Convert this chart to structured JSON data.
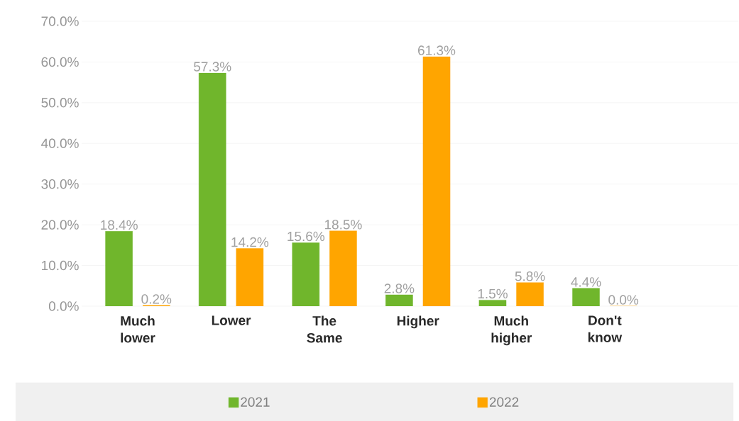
{
  "chart_data": {
    "type": "bar",
    "categories": [
      "Much lower",
      "Lower",
      "The Same",
      "Higher",
      "Much higher",
      "Don't know"
    ],
    "series": [
      {
        "name": "2021",
        "color": "#70b62c",
        "values": [
          18.4,
          57.3,
          15.6,
          2.8,
          1.5,
          4.4
        ],
        "value_labels": [
          "18.4%",
          "57.3%",
          "15.6%",
          "2.8%",
          "1.5%",
          "4.4%"
        ]
      },
      {
        "name": "2022",
        "color": "#ffa500",
        "values": [
          0.2,
          14.2,
          18.5,
          61.3,
          5.8,
          0.0
        ],
        "value_labels": [
          "0.2%",
          "14.2%",
          "18.5%",
          "61.3%",
          "5.8%",
          "0.0%"
        ]
      }
    ],
    "ylim": [
      0,
      70
    ],
    "yticks": [
      {
        "value": 0,
        "label": "0.0%"
      },
      {
        "value": 10,
        "label": "10.0%"
      },
      {
        "value": 20,
        "label": "20.0%"
      },
      {
        "value": 30,
        "label": "30.0%"
      },
      {
        "value": 40,
        "label": "40.0%"
      },
      {
        "value": 50,
        "label": "50.0%"
      },
      {
        "value": 60,
        "label": "60.0%"
      },
      {
        "value": 70,
        "label": "70.0%"
      }
    ],
    "grid": "y",
    "legend": "bottom"
  }
}
